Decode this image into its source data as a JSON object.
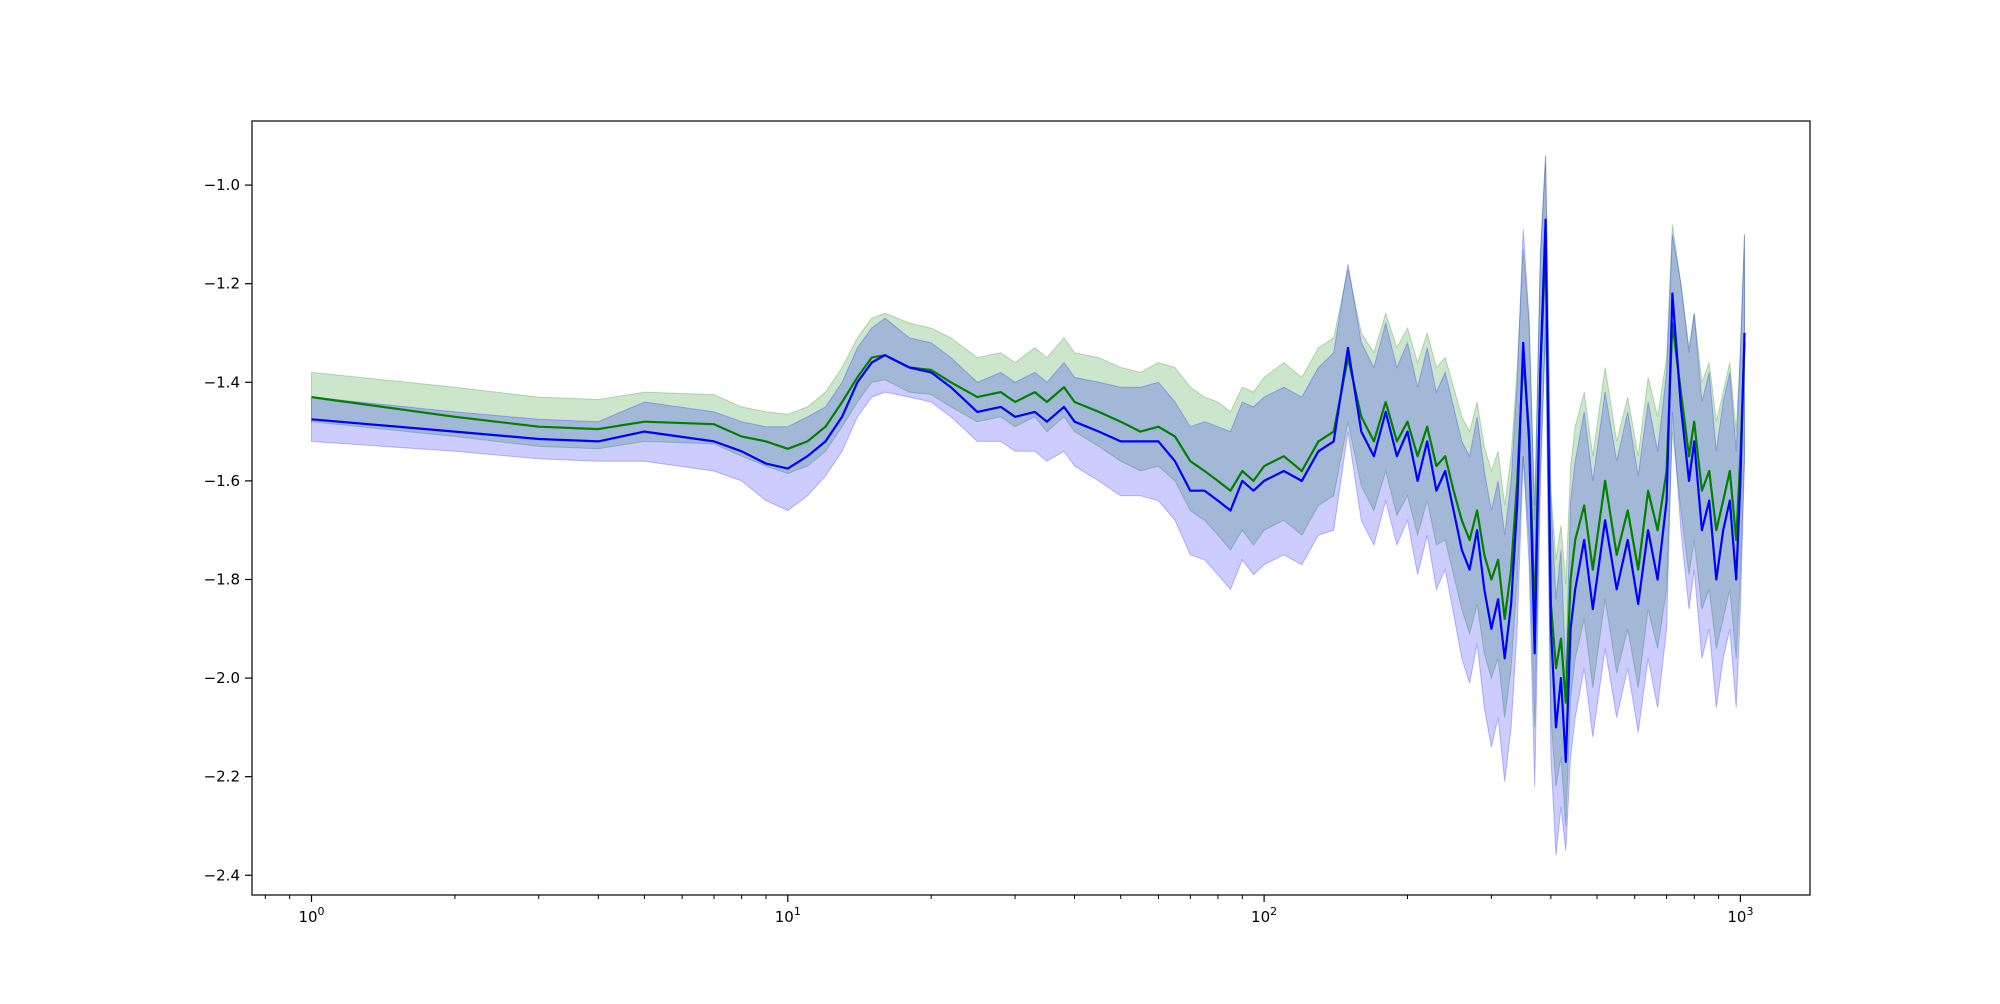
{
  "chart_data": {
    "type": "line",
    "title": "",
    "xlabel": "",
    "ylabel": "",
    "xscale": "log",
    "xlim": [
      0.75,
      1400
    ],
    "ylim": [
      -2.44,
      -0.87
    ],
    "grid": false,
    "legend": null,
    "x_ticks": [
      {
        "value": 1,
        "base": "10",
        "exp": "0"
      },
      {
        "value": 10,
        "base": "10",
        "exp": "1"
      },
      {
        "value": 100,
        "base": "10",
        "exp": "2"
      },
      {
        "value": 1000,
        "base": "10",
        "exp": "3"
      }
    ],
    "y_ticks": [
      {
        "value": -1.0,
        "label": "−1.0"
      },
      {
        "value": -1.2,
        "label": "−1.2"
      },
      {
        "value": -1.4,
        "label": "−1.4"
      },
      {
        "value": -1.6,
        "label": "−1.6"
      },
      {
        "value": -1.8,
        "label": "−1.8"
      },
      {
        "value": -2.0,
        "label": "−2.0"
      },
      {
        "value": -2.2,
        "label": "−2.2"
      },
      {
        "value": -2.4,
        "label": "−2.4"
      }
    ],
    "series": [
      {
        "color": "#008000",
        "band_color": "#008000",
        "band_opacity": 0.2,
        "x": [
          1,
          2,
          3,
          4,
          5,
          7,
          8,
          9,
          10,
          11,
          12,
          13,
          14,
          15,
          16,
          18,
          20,
          22,
          25,
          28,
          30,
          33,
          35,
          38,
          40,
          45,
          50,
          55,
          60,
          65,
          70,
          75,
          80,
          85,
          90,
          95,
          100,
          110,
          120,
          130,
          140,
          150,
          160,
          170,
          180,
          190,
          200,
          210,
          220,
          230,
          240,
          250,
          260,
          270,
          280,
          290,
          300,
          310,
          320,
          330,
          340,
          350,
          360,
          370,
          380,
          390,
          400,
          410,
          420,
          430,
          440,
          450,
          470,
          490,
          520,
          550,
          580,
          610,
          640,
          670,
          700,
          720,
          750,
          780,
          800,
          830,
          860,
          890,
          920,
          950,
          980,
          1000,
          1020
        ],
        "y": [
          -1.43,
          -1.47,
          -1.49,
          -1.495,
          -1.48,
          -1.485,
          -1.51,
          -1.52,
          -1.535,
          -1.52,
          -1.49,
          -1.44,
          -1.39,
          -1.35,
          -1.345,
          -1.37,
          -1.375,
          -1.4,
          -1.43,
          -1.42,
          -1.44,
          -1.42,
          -1.44,
          -1.41,
          -1.44,
          -1.46,
          -1.48,
          -1.5,
          -1.49,
          -1.51,
          -1.56,
          -1.58,
          -1.6,
          -1.62,
          -1.58,
          -1.6,
          -1.57,
          -1.55,
          -1.58,
          -1.52,
          -1.5,
          -1.35,
          -1.47,
          -1.52,
          -1.44,
          -1.52,
          -1.48,
          -1.55,
          -1.49,
          -1.57,
          -1.55,
          -1.62,
          -1.68,
          -1.72,
          -1.66,
          -1.75,
          -1.8,
          -1.76,
          -1.88,
          -1.78,
          -1.6,
          -1.35,
          -1.5,
          -1.88,
          -1.38,
          -1.12,
          -1.85,
          -1.98,
          -1.92,
          -2.05,
          -1.8,
          -1.72,
          -1.65,
          -1.78,
          -1.6,
          -1.75,
          -1.66,
          -1.78,
          -1.62,
          -1.7,
          -1.58,
          -1.28,
          -1.42,
          -1.55,
          -1.48,
          -1.62,
          -1.58,
          -1.7,
          -1.64,
          -1.58,
          -1.72,
          -1.55,
          -1.32
        ],
        "lower": [
          -1.48,
          -1.51,
          -1.53,
          -1.535,
          -1.52,
          -1.525,
          -1.55,
          -1.57,
          -1.585,
          -1.57,
          -1.54,
          -1.49,
          -1.44,
          -1.4,
          -1.395,
          -1.42,
          -1.425,
          -1.45,
          -1.48,
          -1.47,
          -1.49,
          -1.47,
          -1.5,
          -1.47,
          -1.5,
          -1.53,
          -1.56,
          -1.58,
          -1.57,
          -1.6,
          -1.66,
          -1.68,
          -1.71,
          -1.74,
          -1.7,
          -1.73,
          -1.7,
          -1.68,
          -1.71,
          -1.65,
          -1.63,
          -1.48,
          -1.61,
          -1.66,
          -1.58,
          -1.67,
          -1.63,
          -1.71,
          -1.64,
          -1.73,
          -1.72,
          -1.79,
          -1.86,
          -1.91,
          -1.85,
          -1.95,
          -2.0,
          -1.96,
          -2.08,
          -1.98,
          -1.8,
          -1.55,
          -1.72,
          -2.1,
          -1.58,
          -1.3,
          -2.08,
          -2.22,
          -2.16,
          -2.3,
          -2.04,
          -1.96,
          -1.88,
          -2.02,
          -1.84,
          -1.99,
          -1.9,
          -2.02,
          -1.86,
          -1.94,
          -1.82,
          -1.5,
          -1.66,
          -1.79,
          -1.72,
          -1.86,
          -1.82,
          -1.94,
          -1.88,
          -1.82,
          -1.96,
          -1.79,
          -1.55
        ],
        "upper": [
          -1.38,
          -1.41,
          -1.43,
          -1.435,
          -1.42,
          -1.425,
          -1.45,
          -1.46,
          -1.465,
          -1.45,
          -1.42,
          -1.37,
          -1.31,
          -1.27,
          -1.26,
          -1.28,
          -1.29,
          -1.31,
          -1.35,
          -1.34,
          -1.36,
          -1.33,
          -1.35,
          -1.31,
          -1.34,
          -1.35,
          -1.37,
          -1.38,
          -1.36,
          -1.37,
          -1.41,
          -1.43,
          -1.44,
          -1.46,
          -1.41,
          -1.42,
          -1.39,
          -1.36,
          -1.39,
          -1.33,
          -1.31,
          -1.17,
          -1.3,
          -1.34,
          -1.26,
          -1.33,
          -1.29,
          -1.36,
          -1.3,
          -1.37,
          -1.35,
          -1.41,
          -1.47,
          -1.5,
          -1.44,
          -1.53,
          -1.58,
          -1.54,
          -1.65,
          -1.55,
          -1.37,
          -1.13,
          -1.28,
          -1.65,
          -1.15,
          -0.94,
          -1.62,
          -1.76,
          -1.69,
          -1.81,
          -1.57,
          -1.49,
          -1.42,
          -1.55,
          -1.37,
          -1.52,
          -1.43,
          -1.55,
          -1.39,
          -1.47,
          -1.35,
          -1.08,
          -1.2,
          -1.33,
          -1.26,
          -1.4,
          -1.36,
          -1.48,
          -1.42,
          -1.36,
          -1.5,
          -1.33,
          -1.1
        ]
      },
      {
        "color": "#0000ff",
        "band_color": "#0000ff",
        "band_opacity": 0.2,
        "x": [
          1,
          2,
          3,
          4,
          5,
          7,
          8,
          9,
          10,
          11,
          12,
          13,
          14,
          15,
          16,
          18,
          20,
          22,
          25,
          28,
          30,
          33,
          35,
          38,
          40,
          45,
          50,
          55,
          60,
          65,
          70,
          75,
          80,
          85,
          90,
          95,
          100,
          110,
          120,
          130,
          140,
          150,
          160,
          170,
          180,
          190,
          200,
          210,
          220,
          230,
          240,
          250,
          260,
          270,
          280,
          290,
          300,
          310,
          320,
          330,
          340,
          350,
          360,
          370,
          380,
          390,
          400,
          410,
          420,
          430,
          440,
          450,
          470,
          490,
          520,
          550,
          580,
          610,
          640,
          670,
          700,
          720,
          750,
          780,
          800,
          830,
          860,
          890,
          920,
          950,
          980,
          1000,
          1020
        ],
        "y": [
          -1.475,
          -1.5,
          -1.515,
          -1.52,
          -1.5,
          -1.52,
          -1.54,
          -1.565,
          -1.575,
          -1.55,
          -1.52,
          -1.47,
          -1.4,
          -1.36,
          -1.345,
          -1.37,
          -1.38,
          -1.41,
          -1.46,
          -1.45,
          -1.47,
          -1.46,
          -1.48,
          -1.45,
          -1.48,
          -1.5,
          -1.52,
          -1.52,
          -1.52,
          -1.56,
          -1.62,
          -1.62,
          -1.64,
          -1.66,
          -1.6,
          -1.62,
          -1.6,
          -1.58,
          -1.6,
          -1.54,
          -1.52,
          -1.33,
          -1.5,
          -1.55,
          -1.46,
          -1.55,
          -1.5,
          -1.6,
          -1.52,
          -1.62,
          -1.58,
          -1.66,
          -1.74,
          -1.78,
          -1.7,
          -1.82,
          -1.9,
          -1.84,
          -1.96,
          -1.85,
          -1.65,
          -1.32,
          -1.52,
          -1.95,
          -1.38,
          -1.07,
          -1.9,
          -2.1,
          -2.0,
          -2.17,
          -1.9,
          -1.82,
          -1.72,
          -1.86,
          -1.68,
          -1.82,
          -1.72,
          -1.85,
          -1.7,
          -1.8,
          -1.64,
          -1.22,
          -1.45,
          -1.6,
          -1.52,
          -1.7,
          -1.64,
          -1.8,
          -1.7,
          -1.64,
          -1.8,
          -1.6,
          -1.3
        ],
        "lower": [
          -1.52,
          -1.54,
          -1.555,
          -1.56,
          -1.56,
          -1.58,
          -1.6,
          -1.64,
          -1.66,
          -1.63,
          -1.59,
          -1.54,
          -1.47,
          -1.43,
          -1.42,
          -1.43,
          -1.44,
          -1.47,
          -1.52,
          -1.52,
          -1.54,
          -1.54,
          -1.56,
          -1.54,
          -1.57,
          -1.6,
          -1.63,
          -1.63,
          -1.64,
          -1.68,
          -1.75,
          -1.76,
          -1.79,
          -1.82,
          -1.76,
          -1.79,
          -1.77,
          -1.75,
          -1.77,
          -1.71,
          -1.7,
          -1.5,
          -1.68,
          -1.73,
          -1.64,
          -1.73,
          -1.68,
          -1.79,
          -1.71,
          -1.82,
          -1.78,
          -1.87,
          -1.96,
          -2.01,
          -1.93,
          -2.06,
          -2.14,
          -2.08,
          -2.21,
          -2.1,
          -1.9,
          -1.55,
          -1.77,
          -2.22,
          -1.62,
          -1.28,
          -2.16,
          -2.36,
          -2.26,
          -2.35,
          -2.16,
          -2.08,
          -1.98,
          -2.12,
          -1.94,
          -2.08,
          -1.98,
          -2.11,
          -1.96,
          -2.06,
          -1.9,
          -1.46,
          -1.7,
          -1.86,
          -1.78,
          -1.96,
          -1.9,
          -2.06,
          -1.96,
          -1.9,
          -2.06,
          -1.86,
          -1.56
        ],
        "upper": [
          -1.43,
          -1.46,
          -1.475,
          -1.48,
          -1.44,
          -1.46,
          -1.48,
          -1.49,
          -1.49,
          -1.47,
          -1.45,
          -1.4,
          -1.33,
          -1.29,
          -1.27,
          -1.31,
          -1.32,
          -1.35,
          -1.4,
          -1.38,
          -1.4,
          -1.38,
          -1.4,
          -1.36,
          -1.39,
          -1.4,
          -1.41,
          -1.41,
          -1.4,
          -1.44,
          -1.49,
          -1.48,
          -1.49,
          -1.5,
          -1.44,
          -1.45,
          -1.43,
          -1.41,
          -1.43,
          -1.37,
          -1.34,
          -1.16,
          -1.32,
          -1.37,
          -1.28,
          -1.37,
          -1.32,
          -1.41,
          -1.33,
          -1.42,
          -1.38,
          -1.45,
          -1.52,
          -1.55,
          -1.47,
          -1.58,
          -1.66,
          -1.6,
          -1.71,
          -1.6,
          -1.4,
          -1.09,
          -1.27,
          -1.68,
          -1.14,
          -0.94,
          -1.64,
          -1.84,
          -1.74,
          -1.99,
          -1.64,
          -1.56,
          -1.46,
          -1.6,
          -1.42,
          -1.56,
          -1.46,
          -1.59,
          -1.44,
          -1.54,
          -1.38,
          -1.1,
          -1.2,
          -1.34,
          -1.26,
          -1.44,
          -1.38,
          -1.54,
          -1.44,
          -1.38,
          -1.54,
          -1.34,
          -1.1
        ]
      }
    ]
  }
}
